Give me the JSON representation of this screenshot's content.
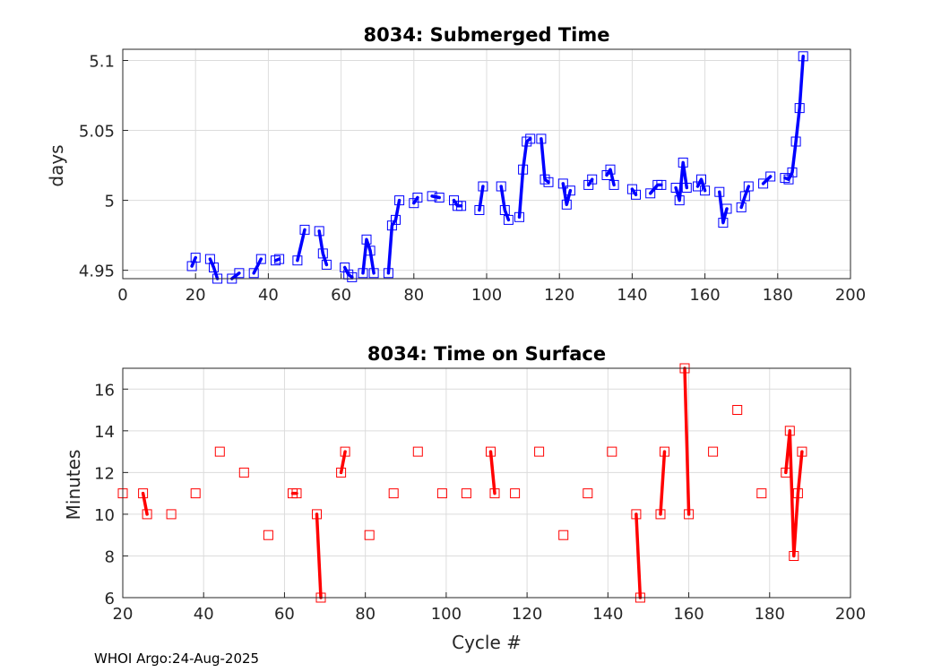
{
  "footer": "WHOI Argo:24-Aug-2025",
  "chart_data": [
    {
      "type": "line",
      "title": "8034: Submerged Time",
      "xlabel": "",
      "ylabel": "days",
      "xlim": [
        0,
        200
      ],
      "ylim": [
        4.944,
        5.108
      ],
      "xticks": [
        0,
        20,
        40,
        60,
        80,
        100,
        120,
        140,
        160,
        180,
        200
      ],
      "yticks": [
        4.95,
        5,
        5.05,
        5.1
      ],
      "ytick_labels": [
        "4.95",
        "5",
        "5.05",
        "5.1"
      ],
      "grid": true,
      "color": "#0000ff",
      "segments": [
        [
          [
            19,
            4.953
          ],
          [
            20,
            4.959
          ]
        ],
        [
          [
            24,
            4.958
          ],
          [
            25,
            4.952
          ],
          [
            26,
            4.944
          ]
        ],
        [
          [
            30,
            4.944
          ],
          [
            32,
            4.948
          ]
        ],
        [
          [
            36,
            4.948
          ],
          [
            38,
            4.958
          ]
        ],
        [
          [
            42,
            4.957
          ],
          [
            43,
            4.958
          ]
        ],
        [
          [
            48,
            4.957
          ],
          [
            50,
            4.979
          ]
        ],
        [
          [
            54,
            4.978
          ],
          [
            55,
            4.962
          ],
          [
            56,
            4.954
          ]
        ],
        [
          [
            61,
            4.952
          ],
          [
            62,
            4.947
          ],
          [
            63,
            4.945
          ]
        ],
        [
          [
            66,
            4.948
          ],
          [
            67,
            4.972
          ],
          [
            68,
            4.964
          ],
          [
            69,
            4.948
          ]
        ],
        [
          [
            73,
            4.948
          ],
          [
            74,
            4.982
          ],
          [
            75,
            4.986
          ],
          [
            76,
            5.0
          ]
        ],
        [
          [
            80,
            4.998
          ],
          [
            81,
            5.002
          ]
        ],
        [
          [
            85,
            5.003
          ],
          [
            87,
            5.002
          ]
        ],
        [
          [
            91,
            5.0
          ],
          [
            92,
            4.996
          ],
          [
            93,
            4.996
          ]
        ],
        [
          [
            98,
            4.993
          ],
          [
            99,
            5.01
          ]
        ],
        [
          [
            104,
            5.01
          ],
          [
            105,
            4.993
          ],
          [
            106,
            4.986
          ]
        ],
        [
          [
            109,
            4.988
          ],
          [
            110,
            5.022
          ],
          [
            111,
            5.042
          ],
          [
            112,
            5.044
          ]
        ],
        [
          [
            115,
            5.044
          ],
          [
            116,
            5.015
          ],
          [
            117,
            5.013
          ]
        ],
        [
          [
            121,
            5.012
          ],
          [
            122,
            4.997
          ],
          [
            123,
            5.007
          ]
        ],
        [
          [
            128,
            5.011
          ],
          [
            129,
            5.015
          ]
        ],
        [
          [
            133,
            5.018
          ],
          [
            134,
            5.022
          ],
          [
            135,
            5.011
          ]
        ],
        [
          [
            140,
            5.008
          ],
          [
            141,
            5.004
          ]
        ],
        [
          [
            145,
            5.005
          ],
          [
            147,
            5.011
          ],
          [
            148,
            5.011
          ]
        ],
        [
          [
            152,
            5.009
          ],
          [
            153,
            5.0
          ],
          [
            154,
            5.027
          ],
          [
            155,
            5.009
          ]
        ],
        [
          [
            158,
            5.01
          ],
          [
            159,
            5.015
          ],
          [
            160,
            5.007
          ]
        ],
        [
          [
            164,
            5.006
          ],
          [
            165,
            4.984
          ],
          [
            166,
            4.994
          ]
        ],
        [
          [
            170,
            4.995
          ],
          [
            171,
            5.003
          ],
          [
            172,
            5.01
          ]
        ],
        [
          [
            176,
            5.012
          ],
          [
            178,
            5.017
          ]
        ],
        [
          [
            182,
            5.016
          ],
          [
            183,
            5.015
          ],
          [
            184,
            5.02
          ],
          [
            185,
            5.042
          ],
          [
            186,
            5.066
          ],
          [
            187,
            5.103
          ]
        ]
      ]
    },
    {
      "type": "line",
      "title": "8034: Time on Surface",
      "xlabel": "Cycle #",
      "ylabel": "Minutes",
      "xlim": [
        20,
        200
      ],
      "ylim": [
        6,
        17
      ],
      "xticks": [
        20,
        40,
        60,
        80,
        100,
        120,
        140,
        160,
        180,
        200
      ],
      "yticks": [
        6,
        8,
        10,
        12,
        14,
        16
      ],
      "ytick_labels": [
        "6",
        "8",
        "10",
        "12",
        "14",
        "16"
      ],
      "grid": true,
      "color": "#ff0000",
      "segments": [
        [
          [
            20,
            11
          ]
        ],
        [
          [
            25,
            11
          ],
          [
            26,
            10
          ]
        ],
        [
          [
            32,
            10
          ]
        ],
        [
          [
            38,
            11
          ]
        ],
        [
          [
            44,
            13
          ]
        ],
        [
          [
            50,
            12
          ]
        ],
        [
          [
            56,
            9
          ]
        ],
        [
          [
            62,
            11
          ],
          [
            63,
            11
          ]
        ],
        [
          [
            68,
            10
          ],
          [
            69,
            6
          ]
        ],
        [
          [
            74,
            12
          ],
          [
            75,
            13
          ]
        ],
        [
          [
            81,
            9
          ]
        ],
        [
          [
            87,
            11
          ]
        ],
        [
          [
            93,
            13
          ]
        ],
        [
          [
            99,
            11
          ]
        ],
        [
          [
            105,
            11
          ]
        ],
        [
          [
            111,
            13
          ],
          [
            112,
            11
          ]
        ],
        [
          [
            117,
            11
          ]
        ],
        [
          [
            123,
            13
          ]
        ],
        [
          [
            129,
            9
          ]
        ],
        [
          [
            135,
            11
          ]
        ],
        [
          [
            141,
            13
          ]
        ],
        [
          [
            147,
            10
          ],
          [
            148,
            6
          ]
        ],
        [
          [
            153,
            10
          ],
          [
            154,
            13
          ]
        ],
        [
          [
            159,
            17
          ],
          [
            160,
            10
          ]
        ],
        [
          [
            166,
            13
          ]
        ],
        [
          [
            172,
            15
          ]
        ],
        [
          [
            178,
            11
          ]
        ],
        [
          [
            184,
            12
          ],
          [
            185,
            14
          ],
          [
            186,
            8
          ],
          [
            187,
            11
          ],
          [
            188,
            13
          ]
        ]
      ]
    }
  ]
}
